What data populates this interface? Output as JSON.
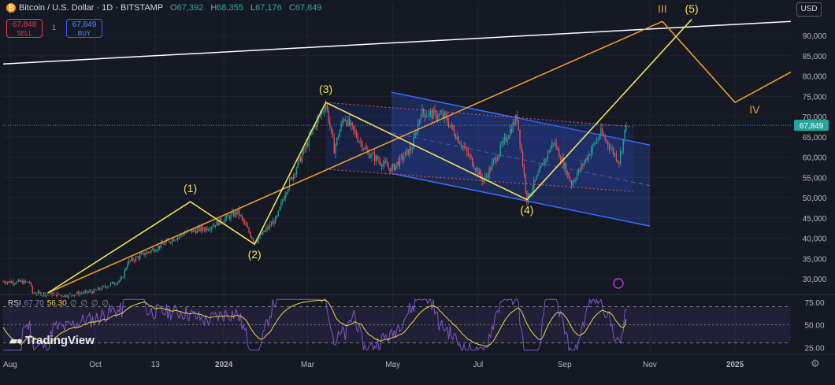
{
  "header": {
    "symbol_title": "Bitcoin / U.S. Dollar · 1D · BITSTAMP",
    "open_label": "O",
    "open": "67,392",
    "high_label": "H",
    "high": "68,355",
    "low_label": "L",
    "low": "67,176",
    "close_label": "C",
    "close": "67,849"
  },
  "trade": {
    "sell_price": "67,848",
    "sell_label": "SELL",
    "spread": "1",
    "buy_price": "67,849",
    "buy_label": "BUY"
  },
  "currency_button": "USD",
  "rsi": {
    "label": "RSI",
    "value": "67.70",
    "ma": "56.30",
    "placeholders": "∅ ∅ ∅ ∅"
  },
  "watermark": "TradingView",
  "colors": {
    "up": "#26a69a",
    "down": "#ef5350",
    "wave": "#f0e05a",
    "trend": "#e89b2c",
    "channel": "#3a6bff",
    "rsi": "#7e57c2",
    "rsi_ma": "#e8d44d"
  },
  "chart_data": {
    "type": "candlestick",
    "ticker": "BTCUSD",
    "y_ticks": [
      30000,
      35000,
      40000,
      45000,
      50000,
      55000,
      60000,
      65000,
      70000,
      75000,
      80000,
      85000,
      90000
    ],
    "y_tick_labels": [
      "30,000",
      "35,000",
      "40,000",
      "45,000",
      "50,000",
      "55,000",
      "60,000",
      "65,000",
      "70,000",
      "75,000",
      "80,000",
      "85,000",
      "90,000"
    ],
    "ylim": [
      26500,
      98000
    ],
    "x_labels": [
      "Aug",
      "Oct",
      "13",
      "2024",
      "Mar",
      "May",
      "Jul",
      "Sep",
      "Nov",
      "2025"
    ],
    "x_label_dates": [
      "2023-08-01",
      "2023-10-01",
      "2023-11-13",
      "2024-01-01",
      "2024-03-01",
      "2024-05-01",
      "2024-07-01",
      "2024-09-01",
      "2024-11-01",
      "2025-01-01"
    ],
    "xlim": [
      "2023-07-27",
      "2025-02-10"
    ],
    "last_price": 67849,
    "last_price_label": "67,849",
    "price_path": [
      [
        "2023-07-27",
        29300
      ],
      [
        "2023-08-15",
        29100
      ],
      [
        "2023-08-17",
        26500
      ],
      [
        "2023-09-10",
        25900
      ],
      [
        "2023-09-30",
        26900
      ],
      [
        "2023-10-20",
        29800
      ],
      [
        "2023-10-24",
        34000
      ],
      [
        "2023-11-10",
        37000
      ],
      [
        "2023-12-05",
        41500
      ],
      [
        "2023-12-20",
        42500
      ],
      [
        "2024-01-11",
        46500
      ],
      [
        "2024-01-23",
        39000
      ],
      [
        "2024-02-08",
        45000
      ],
      [
        "2024-02-14",
        51500
      ],
      [
        "2024-02-28",
        62000
      ],
      [
        "2024-03-05",
        67000
      ],
      [
        "2024-03-14",
        73200
      ],
      [
        "2024-03-20",
        62000
      ],
      [
        "2024-03-27",
        70000
      ],
      [
        "2024-04-13",
        61000
      ],
      [
        "2024-04-30",
        57000
      ],
      [
        "2024-05-15",
        62500
      ],
      [
        "2024-05-21",
        71000
      ],
      [
        "2024-06-07",
        70000
      ],
      [
        "2024-06-24",
        60500
      ],
      [
        "2024-07-05",
        54000
      ],
      [
        "2024-07-29",
        70000
      ],
      [
        "2024-08-05",
        49500
      ],
      [
        "2024-08-24",
        64000
      ],
      [
        "2024-09-06",
        53500
      ],
      [
        "2024-09-27",
        66000
      ],
      [
        "2024-10-10",
        59000
      ],
      [
        "2024-10-15",
        67849
      ]
    ],
    "waves": [
      {
        "label": "(1)",
        "date": "2023-12-08",
        "price": 49000
      },
      {
        "label": "(2)",
        "date": "2024-01-23",
        "price": 38500
      },
      {
        "label": "(3)",
        "date": "2024-03-14",
        "price": 73500
      },
      {
        "label": "(4)",
        "date": "2024-08-05",
        "price": 49500
      },
      {
        "label": "(5)",
        "date": "2024-12-01",
        "price": 96500
      },
      {
        "label": "III",
        "date": "2024-11-10",
        "price": 96500
      },
      {
        "label": "IV",
        "date": "2025-01-15",
        "price": 68500
      }
    ],
    "wave_path": [
      [
        "2023-08-28",
        26500
      ],
      [
        "2023-12-08",
        49000
      ],
      [
        "2024-01-23",
        38500
      ],
      [
        "2024-03-14",
        73500
      ],
      [
        "2024-08-05",
        49500
      ],
      [
        "2024-12-01",
        94000
      ]
    ],
    "orange_path": [
      [
        "2023-08-28",
        26500
      ],
      [
        "2024-11-10",
        93500
      ],
      [
        "2025-01-01",
        73500
      ],
      [
        "2025-02-10",
        81000
      ]
    ],
    "white_trend": [
      [
        "2023-07-27",
        83000
      ],
      [
        "2025-02-10",
        93500
      ]
    ],
    "channel": {
      "upper": [
        [
          "2024-04-30",
          76000
        ],
        [
          "2024-11-01",
          63000
        ]
      ],
      "lower": [
        [
          "2024-04-30",
          56000
        ],
        [
          "2024-11-01",
          43000
        ]
      ]
    },
    "red_dotted": {
      "upper": [
        [
          "2024-03-14",
          73500
        ],
        [
          "2024-10-20",
          67500
        ]
      ],
      "lower": [
        [
          "2024-03-14",
          57000
        ],
        [
          "2024-10-20",
          51500
        ]
      ]
    },
    "rsi": {
      "value": 67.7,
      "ma": 56.3,
      "levels": [
        70,
        50,
        30
      ],
      "y_tick_labels": [
        "75.00",
        "50.00",
        "25.00"
      ],
      "y_ticks": [
        75,
        50,
        25
      ],
      "ylim": [
        20,
        80
      ]
    }
  }
}
